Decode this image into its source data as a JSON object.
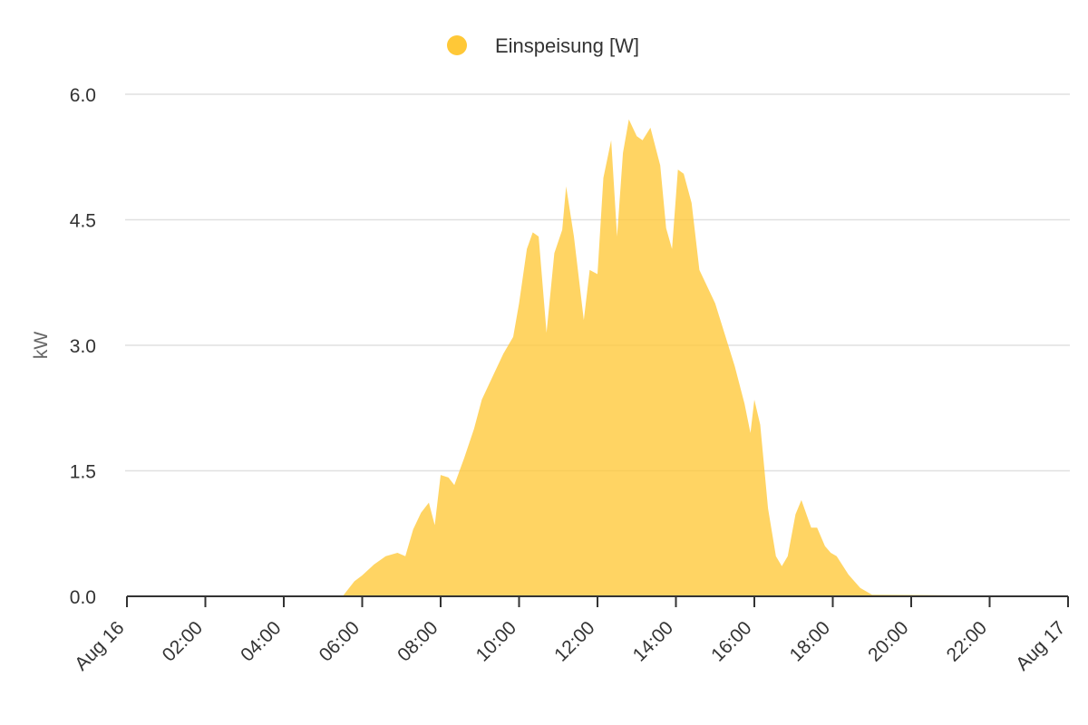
{
  "chart_data": {
    "type": "area",
    "legend": {
      "placement": "top-center",
      "entries": [
        {
          "name": "Einspeisung [W]",
          "color": "#ffc837"
        }
      ]
    },
    "ylabel": "kW",
    "ylim": [
      0,
      6
    ],
    "y_ticks": [
      "0.0",
      "1.5",
      "3.0",
      "4.5",
      "6.0"
    ],
    "y_tick_values": [
      0,
      1.5,
      3,
      4.5,
      6
    ],
    "xlim": [
      "Aug 16 00:00",
      "Aug 17 00:00"
    ],
    "x_ticks": [
      "Aug 16",
      "02:00",
      "04:00",
      "06:00",
      "08:00",
      "10:00",
      "12:00",
      "14:00",
      "16:00",
      "18:00",
      "20:00",
      "22:00",
      "Aug 17"
    ],
    "x_tick_hours": [
      0,
      2,
      4,
      6,
      8,
      10,
      12,
      14,
      16,
      18,
      20,
      22,
      24
    ],
    "grid": true,
    "series": [
      {
        "name": "Einspeisung [W]",
        "color": "#ffc837",
        "x_hours": [
          0,
          5.5,
          5.8,
          6.0,
          6.3,
          6.6,
          6.9,
          7.1,
          7.3,
          7.5,
          7.7,
          7.85,
          8.0,
          8.2,
          8.35,
          8.6,
          8.85,
          9.05,
          9.3,
          9.6,
          9.85,
          10.0,
          10.2,
          10.35,
          10.5,
          10.7,
          10.9,
          11.1,
          11.2,
          11.4,
          11.65,
          11.8,
          12.0,
          12.15,
          12.35,
          12.5,
          12.65,
          12.8,
          13.0,
          13.15,
          13.35,
          13.6,
          13.75,
          13.9,
          14.05,
          14.2,
          14.4,
          14.6,
          15.0,
          15.5,
          15.75,
          15.9,
          16.0,
          16.15,
          16.35,
          16.55,
          16.7,
          16.85,
          17.05,
          17.2,
          17.45,
          17.6,
          17.8,
          17.95,
          18.1,
          18.4,
          18.7,
          19.0,
          24
        ],
        "values": [
          0,
          0,
          0.18,
          0.25,
          0.38,
          0.48,
          0.52,
          0.48,
          0.8,
          1.0,
          1.12,
          0.85,
          1.45,
          1.42,
          1.33,
          1.65,
          2.0,
          2.35,
          2.6,
          2.9,
          3.1,
          3.5,
          4.15,
          4.35,
          4.3,
          3.15,
          4.1,
          4.38,
          4.9,
          4.3,
          3.3,
          3.9,
          3.85,
          5.0,
          5.45,
          4.3,
          5.3,
          5.7,
          5.5,
          5.45,
          5.6,
          5.15,
          4.4,
          4.15,
          5.1,
          5.05,
          4.7,
          3.9,
          3.5,
          2.75,
          2.3,
          1.95,
          2.35,
          2.05,
          1.05,
          0.48,
          0.36,
          0.48,
          0.98,
          1.15,
          0.82,
          0.82,
          0.6,
          0.52,
          0.48,
          0.26,
          0.1,
          0.02,
          0
        ]
      }
    ]
  }
}
